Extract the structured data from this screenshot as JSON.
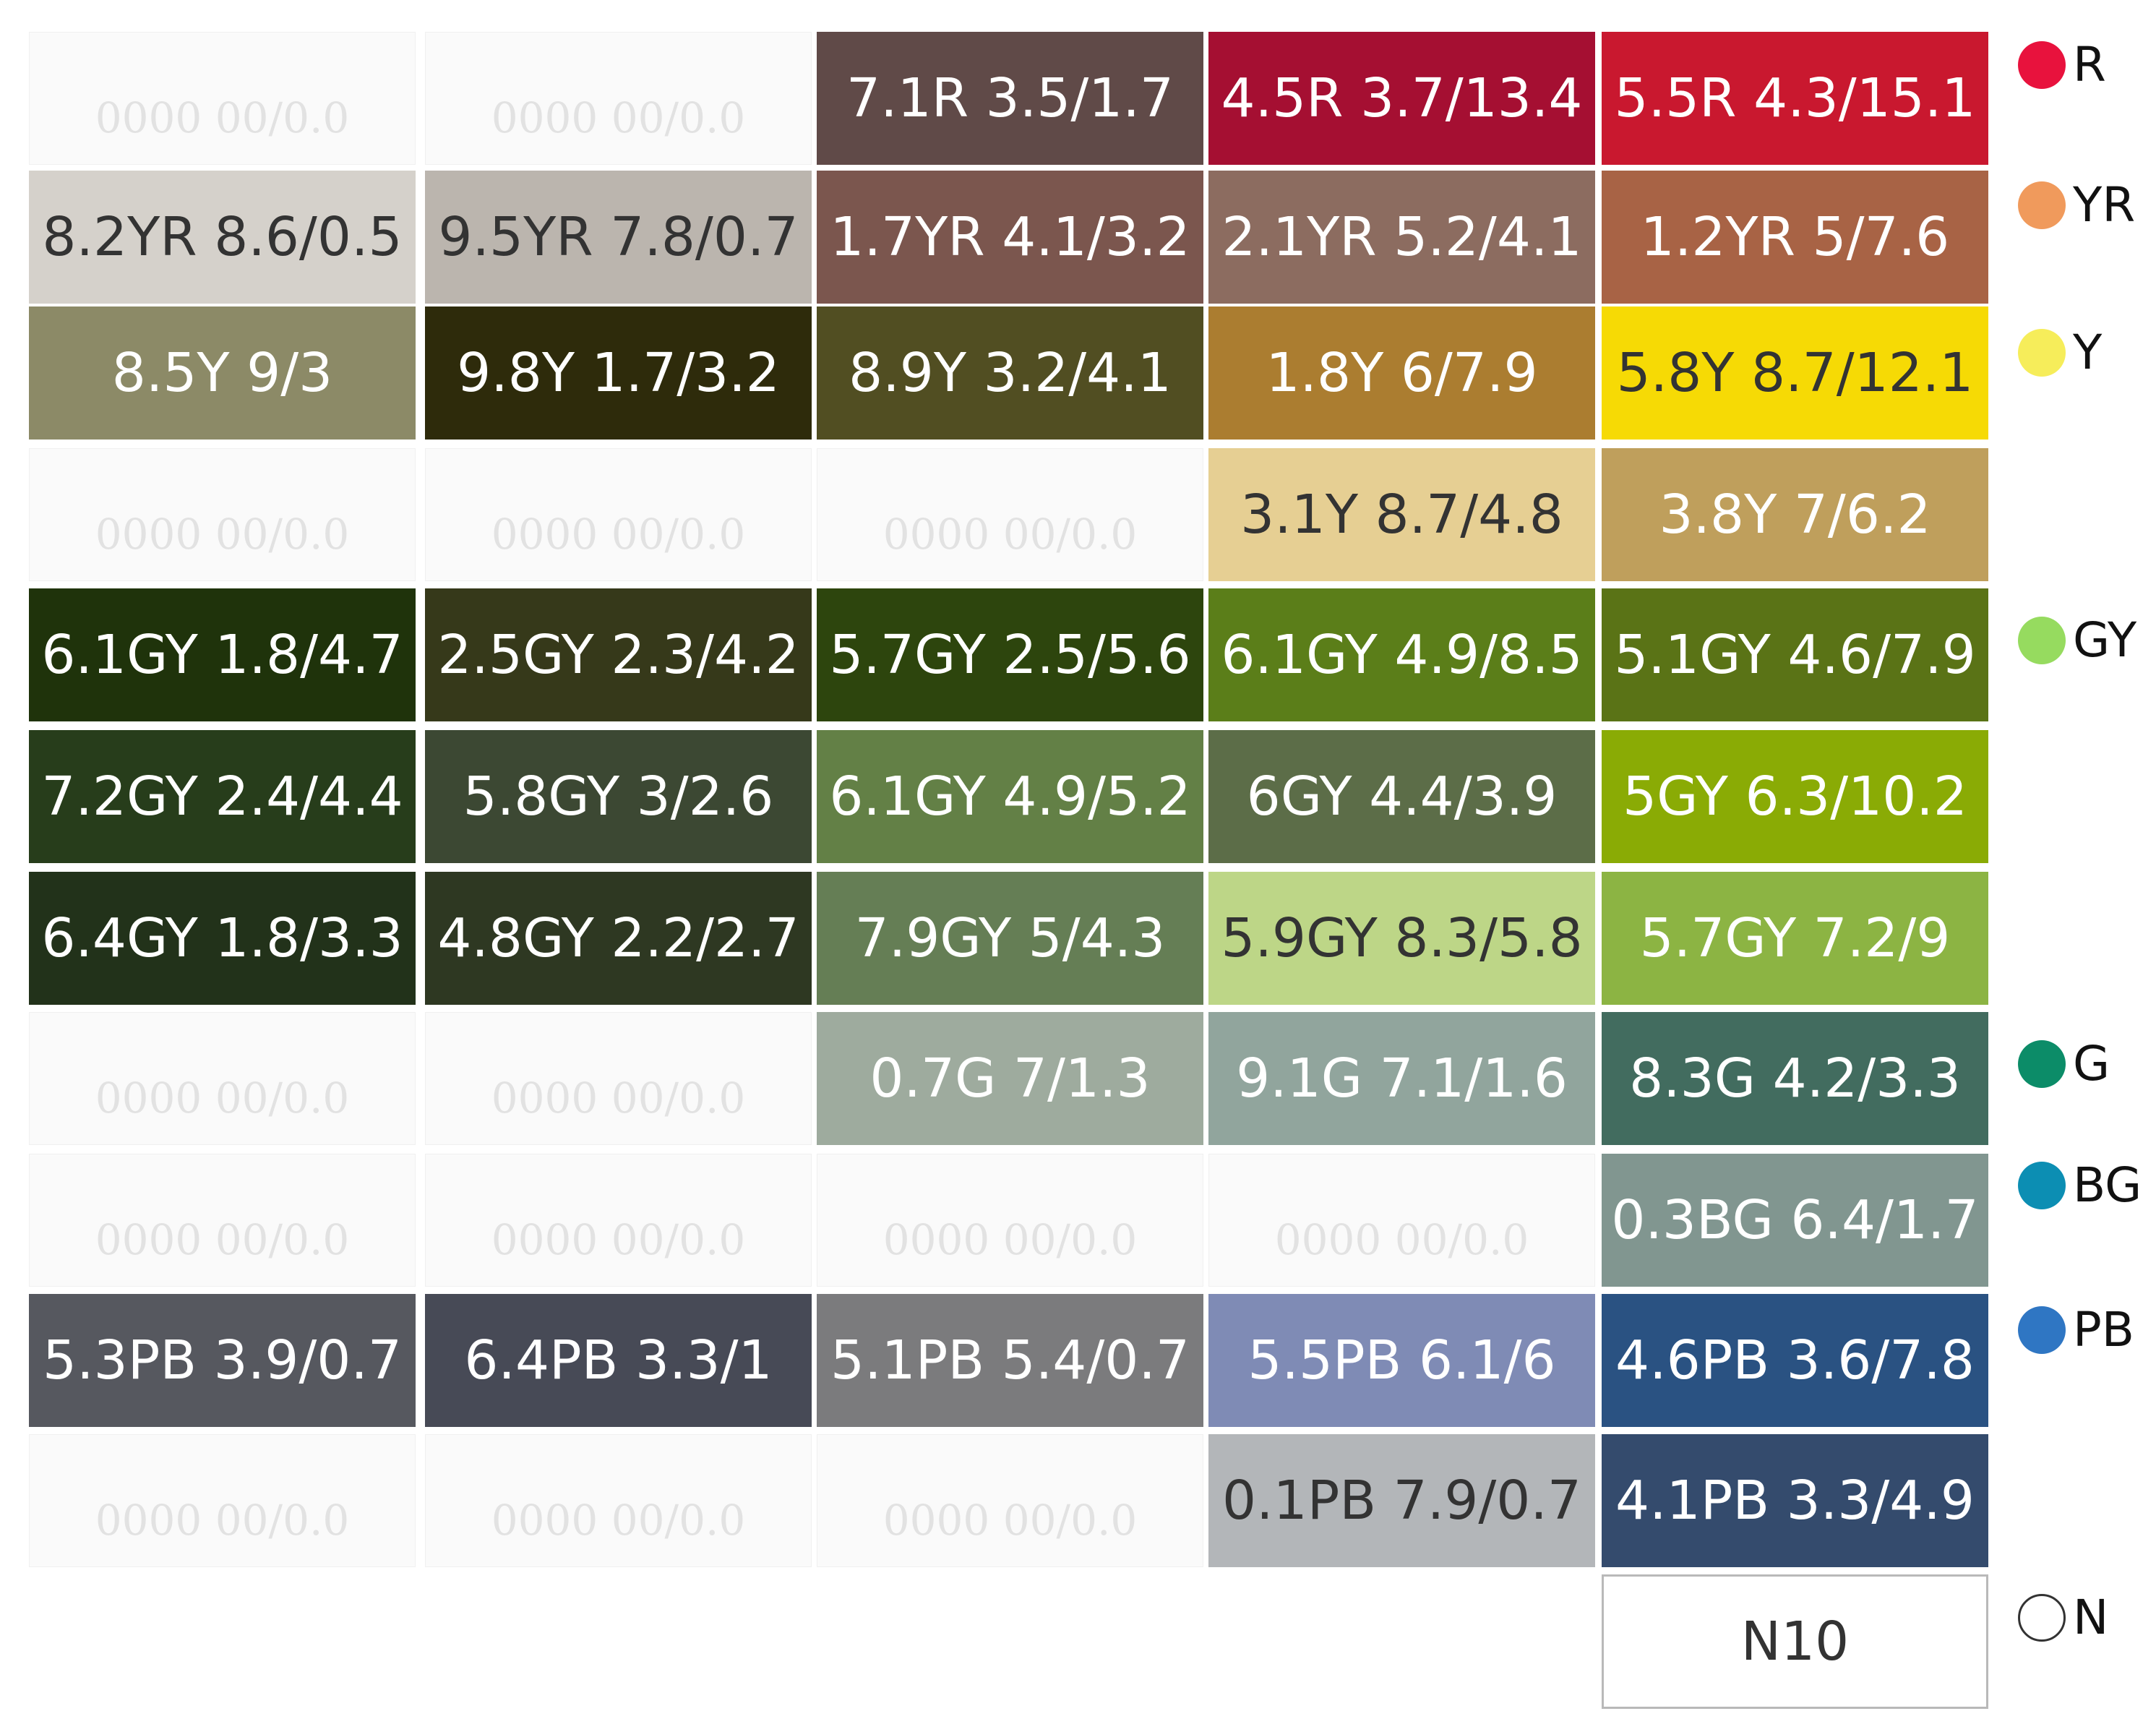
{
  "empty_placeholder": "0000 00/0.0",
  "rows": [
    {
      "cells": [
        {
          "label": "",
          "color": ""
        },
        {
          "label": "",
          "color": ""
        },
        {
          "label": "7.1R 3.5/1.7",
          "color": "#604a48"
        },
        {
          "label": "4.5R 3.7/13.4",
          "color": "#a50f32"
        },
        {
          "label": "5.5R 4.3/15.1",
          "color": "#c9182f"
        }
      ]
    },
    {
      "cells": [
        {
          "label": "8.2YR 8.6/0.5",
          "color": "#d5d1cb",
          "dark": true
        },
        {
          "label": "9.5YR 7.8/0.7",
          "color": "#bbb5ae",
          "dark": true
        },
        {
          "label": "1.7YR 4.1/3.2",
          "color": "#7b564e"
        },
        {
          "label": "2.1YR 5.2/4.1",
          "color": "#8c6c60"
        },
        {
          "label": "1.2YR 5/7.6",
          "color": "#a86345"
        }
      ]
    },
    {
      "cells": [
        {
          "label": "8.5Y 9/3",
          "color": "#8c8a67"
        },
        {
          "label": "9.8Y 1.7/3.2",
          "color": "#2e2b0b"
        },
        {
          "label": "8.9Y 3.2/4.1",
          "color": "#514e22"
        },
        {
          "label": "1.8Y 6/7.9",
          "color": "#ab7d30"
        },
        {
          "label": "5.8Y 8.7/12.1",
          "color": "#f6da05",
          "dark": true
        }
      ]
    },
    {
      "cells": [
        {
          "label": "",
          "color": ""
        },
        {
          "label": "",
          "color": ""
        },
        {
          "label": "",
          "color": ""
        },
        {
          "label": "3.1Y 8.7/4.8",
          "color": "#e6cf93",
          "dark": true
        },
        {
          "label": "3.8Y 7/6.2",
          "color": "#bf9f5c"
        }
      ]
    },
    {
      "cells": [
        {
          "label": "6.1GY 1.8/4.7",
          "color": "#1f330b"
        },
        {
          "label": "2.5GY 2.3/4.2",
          "color": "#36391a"
        },
        {
          "label": "5.7GY 2.5/5.6",
          "color": "#2d450d"
        },
        {
          "label": "6.1GY 4.9/8.5",
          "color": "#5b7e19"
        },
        {
          "label": "5.1GY 4.6/7.9",
          "color": "#5a7316"
        }
      ]
    },
    {
      "cells": [
        {
          "label": "7.2GY 2.4/4.4",
          "color": "#273d1b"
        },
        {
          "label": "5.8GY 3/2.6",
          "color": "#3c4833"
        },
        {
          "label": "6.1GY 4.9/5.2",
          "color": "#638046"
        },
        {
          "label": "6GY 4.4/3.9",
          "color": "#5c6d48"
        },
        {
          "label": "5GY 6.3/10.2",
          "color": "#8aab05"
        }
      ]
    },
    {
      "cells": [
        {
          "label": "6.4GY 1.8/3.3",
          "color": "#22321a"
        },
        {
          "label": "4.8GY 2.2/2.7",
          "color": "#2e3822"
        },
        {
          "label": "7.9GY 5/4.3",
          "color": "#657e55"
        },
        {
          "label": "5.9GY 8.3/5.8",
          "color": "#bdd687",
          "dark": true
        },
        {
          "label": "5.7GY 7.2/9",
          "color": "#8cb443"
        }
      ]
    },
    {
      "cells": [
        {
          "label": "",
          "color": ""
        },
        {
          "label": "",
          "color": ""
        },
        {
          "label": "0.7G 7/1.3",
          "color": "#9eab9e"
        },
        {
          "label": "9.1G 7.1/1.6",
          "color": "#91a59d"
        },
        {
          "label": "8.3G 4.2/3.3",
          "color": "#426c5f"
        }
      ]
    },
    {
      "cells": [
        {
          "label": "",
          "color": ""
        },
        {
          "label": "",
          "color": ""
        },
        {
          "label": "",
          "color": ""
        },
        {
          "label": "",
          "color": ""
        },
        {
          "label": "0.3BG 6.4/1.7",
          "color": "#819690"
        }
      ]
    },
    {
      "cells": [
        {
          "label": "5.3PB 3.9/0.7",
          "color": "#56585f"
        },
        {
          "label": "6.4PB 3.3/1",
          "color": "#474a56"
        },
        {
          "label": "5.1PB 5.4/0.7",
          "color": "#7b7b7d"
        },
        {
          "label": "5.5PB 6.1/6",
          "color": "#7f8bb5"
        },
        {
          "label": "4.6PB 3.6/7.8",
          "color": "#2a5282"
        }
      ]
    },
    {
      "cells": [
        {
          "label": "",
          "color": ""
        },
        {
          "label": "",
          "color": ""
        },
        {
          "label": "",
          "color": ""
        },
        {
          "label": "0.1PB 7.9/0.7",
          "color": "#b3b6b9",
          "dark": true
        },
        {
          "label": "4.1PB 3.3/4.9",
          "color": "#344b6d"
        }
      ]
    }
  ],
  "neutral": {
    "label": "N10",
    "color": "#ffffff"
  },
  "legend": [
    {
      "label": "R",
      "color": "#e8123d"
    },
    {
      "label": "YR",
      "color": "#f09a5c"
    },
    {
      "label": "Y",
      "color": "#f6ed5a"
    },
    {
      "label": "GY",
      "color": "#96db5f"
    },
    {
      "label": "G",
      "color": "#0c8c68"
    },
    {
      "label": "BG",
      "color": "#0c8eb3"
    },
    {
      "label": "PB",
      "color": "#2f76c3"
    },
    {
      "label": "N",
      "color": "#ffffff",
      "outlined": true
    }
  ]
}
